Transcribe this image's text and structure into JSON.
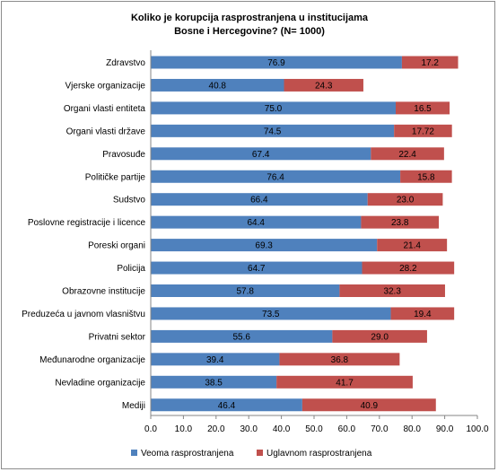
{
  "chart_data": {
    "type": "bar",
    "orientation": "horizontal",
    "stacked": true,
    "title_lines": [
      "Koliko je korupcija rasprostranjena  u institucijama",
      "Bosne i Hercegovine? (N= 1000)"
    ],
    "categories": [
      "Zdravstvo",
      "Vjerske organizacije",
      "Organi vlasti entiteta",
      "Organi vlasti države",
      "Pravosuđe",
      "Političke partije",
      "Sudstvo",
      "Poslovne registracije i licence",
      "Poreski organi",
      "Policija",
      "Obrazovne institucije",
      "Preduzeća u javnom vlasništvu",
      "Privatni sektor",
      "Međunarodne organizacije",
      "Nevladine organizacije",
      "Mediji"
    ],
    "series": [
      {
        "name": "Veoma rasprostranjena",
        "color": "#4f81bd",
        "values": [
          76.9,
          40.8,
          75.0,
          74.5,
          67.4,
          76.4,
          66.4,
          64.4,
          69.3,
          64.7,
          57.8,
          73.5,
          55.6,
          39.4,
          38.5,
          46.4
        ],
        "labels": [
          "76.9",
          "40.8",
          "75.0",
          "74.5",
          "67.4",
          "76.4",
          "66.4",
          "64.4",
          "69.3",
          "64.7",
          "57.8",
          "73.5",
          "55.6",
          "39.4",
          "38.5",
          "46.4"
        ]
      },
      {
        "name": "Uglavnom rasprostranjena",
        "color": "#c0504d",
        "values": [
          17.2,
          24.3,
          16.5,
          17.72,
          22.4,
          15.8,
          23.0,
          23.8,
          21.4,
          28.2,
          32.3,
          19.4,
          29.0,
          36.8,
          41.7,
          40.9
        ],
        "labels": [
          "17.2",
          "24.3",
          "16.5",
          "17.72",
          "22.4",
          "15.8",
          "23.0",
          "23.8",
          "21.4",
          "28.2",
          "32.3",
          "19.4",
          "29.0",
          "36.8",
          "41.7",
          "40.9"
        ]
      }
    ],
    "xlim": [
      0,
      100
    ],
    "x_ticks": [
      0,
      10,
      20,
      30,
      40,
      50,
      60,
      70,
      80,
      90,
      100
    ],
    "x_tick_labels": [
      "0.0",
      "10.0",
      "20.0",
      "30.0",
      "40.0",
      "50.0",
      "60.0",
      "70.0",
      "80.0",
      "90.0",
      "100.0"
    ],
    "grid": false,
    "legend_position": "bottom"
  }
}
